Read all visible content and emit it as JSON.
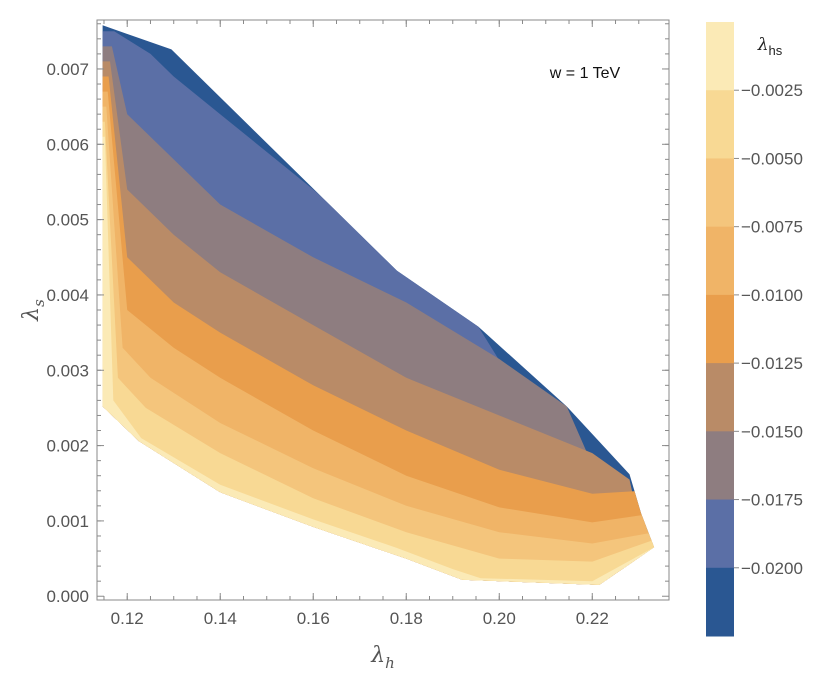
{
  "chart_data": {
    "type": "contour",
    "annotation": "w = 1 TeV",
    "xlabel": "λ",
    "xlabel_sub": "h",
    "ylabel": "λ",
    "ylabel_sub": "s",
    "xlim": [
      0.1135,
      0.2365
    ],
    "ylim": [
      -5e-05,
      0.00765
    ],
    "x_ticks": [
      0.12,
      0.14,
      0.16,
      0.18,
      0.2,
      0.22
    ],
    "x_tick_labels": [
      "0.12",
      "0.14",
      "0.16",
      "0.18",
      "0.20",
      "0.22"
    ],
    "y_ticks": [
      0.0,
      0.001,
      0.002,
      0.003,
      0.004,
      0.005,
      0.006,
      0.007
    ],
    "y_tick_labels": [
      "0.000",
      "0.001",
      "0.002",
      "0.003",
      "0.004",
      "0.005",
      "0.006",
      "0.007"
    ],
    "colorbar": {
      "title": "λ",
      "title_sub": "hs",
      "range": [
        -0.0225,
        0.0
      ],
      "levels": [
        -0.0025,
        -0.005,
        -0.0075,
        -0.01,
        -0.0125,
        -0.015,
        -0.0175,
        -0.02
      ],
      "level_labels": [
        "−0.0025",
        "−0.0050",
        "−0.0075",
        "−0.0100",
        "−0.0125",
        "−0.0150",
        "−0.0175",
        "−0.0200"
      ],
      "band_colors": [
        "#FBEAB6",
        "#F8D994",
        "#F4C57C",
        "#F0B467",
        "#E99E4C",
        "#B98B67",
        "#8E7D80",
        "#5B6FA6",
        "#2A5792"
      ]
    },
    "region": {
      "top": [
        [
          0.1147,
          0.00758
        ],
        [
          0.1295,
          0.00726
        ],
        [
          0.178,
          0.00432
        ],
        [
          0.1955,
          0.00358
        ],
        [
          0.2145,
          0.00252
        ],
        [
          0.228,
          0.00162
        ]
      ],
      "bottom": [
        [
          0.1147,
          0.00252
        ],
        [
          0.1225,
          0.00206
        ],
        [
          0.14,
          0.00138
        ],
        [
          0.16,
          0.00092
        ],
        [
          0.18,
          0.0005
        ],
        [
          0.192,
          0.00022
        ],
        [
          0.2215,
          0.00015
        ],
        [
          0.2333,
          0.00065
        ]
      ],
      "right": [
        [
          0.228,
          0.00162
        ],
        [
          0.2305,
          0.0011
        ],
        [
          0.2333,
          0.00065
        ]
      ]
    },
    "contours": [
      {
        "level": -0.0025,
        "points": [
          [
            0.1152,
            0.0061
          ],
          [
            0.117,
            0.0026
          ],
          [
            0.123,
            0.0021
          ],
          [
            0.14,
            0.00148
          ],
          [
            0.16,
            0.00102
          ],
          [
            0.178,
            0.00064
          ],
          [
            0.19,
            0.00036
          ],
          [
            0.196,
            0.00024
          ],
          [
            0.22,
            0.0002
          ],
          [
            0.2333,
            0.00065
          ]
        ]
      },
      {
        "level": -0.005,
        "points": [
          [
            0.1152,
            0.0063
          ],
          [
            0.118,
            0.0029
          ],
          [
            0.124,
            0.0025
          ],
          [
            0.14,
            0.0019
          ],
          [
            0.16,
            0.0013
          ],
          [
            0.18,
            0.00085
          ],
          [
            0.2,
            0.0005
          ],
          [
            0.22,
            0.00046
          ],
          [
            0.2333,
            0.00075
          ]
        ]
      },
      {
        "level": -0.0075,
        "points": [
          [
            0.1155,
            0.0065
          ],
          [
            0.119,
            0.0033
          ],
          [
            0.125,
            0.0029
          ],
          [
            0.14,
            0.0023
          ],
          [
            0.16,
            0.0017
          ],
          [
            0.18,
            0.0012
          ],
          [
            0.2,
            0.00085
          ],
          [
            0.22,
            0.0007
          ],
          [
            0.2333,
            0.00085
          ]
        ]
      },
      {
        "level": -0.01,
        "points": [
          [
            0.1158,
            0.0067
          ],
          [
            0.12,
            0.0038
          ],
          [
            0.13,
            0.0033
          ],
          [
            0.14,
            0.0029
          ],
          [
            0.16,
            0.0022
          ],
          [
            0.18,
            0.0016
          ],
          [
            0.2,
            0.00118
          ],
          [
            0.22,
            0.00098
          ],
          [
            0.2333,
            0.0011
          ]
        ]
      },
      {
        "level": -0.0125,
        "points": [
          [
            0.116,
            0.0069
          ],
          [
            0.12,
            0.0045
          ],
          [
            0.13,
            0.0039
          ],
          [
            0.14,
            0.0035
          ],
          [
            0.16,
            0.0028
          ],
          [
            0.18,
            0.0022
          ],
          [
            0.2,
            0.00168
          ],
          [
            0.22,
            0.00136
          ],
          [
            0.2305,
            0.0014
          ]
        ]
      },
      {
        "level": -0.015,
        "points": [
          [
            0.1163,
            0.0071
          ],
          [
            0.12,
            0.0054
          ],
          [
            0.13,
            0.0048
          ],
          [
            0.14,
            0.0043
          ],
          [
            0.16,
            0.0036
          ],
          [
            0.18,
            0.0029
          ],
          [
            0.2,
            0.0024
          ],
          [
            0.22,
            0.0019
          ],
          [
            0.228,
            0.00155
          ]
        ]
      },
      {
        "level": -0.0175,
        "points": [
          [
            0.1167,
            0.0073
          ],
          [
            0.12,
            0.0064
          ],
          [
            0.13,
            0.0058
          ],
          [
            0.14,
            0.0052
          ],
          [
            0.16,
            0.0045
          ],
          [
            0.18,
            0.0039
          ],
          [
            0.2,
            0.00315
          ],
          [
            0.2145,
            0.00252
          ]
        ]
      },
      {
        "level": -0.02,
        "points": [
          [
            0.1172,
            0.0075
          ],
          [
            0.125,
            0.0072
          ],
          [
            0.13,
            0.0069
          ],
          [
            0.14,
            0.0064
          ],
          [
            0.16,
            0.0054
          ],
          [
            0.18,
            0.0043
          ],
          [
            0.1955,
            0.00358
          ]
        ]
      }
    ]
  }
}
